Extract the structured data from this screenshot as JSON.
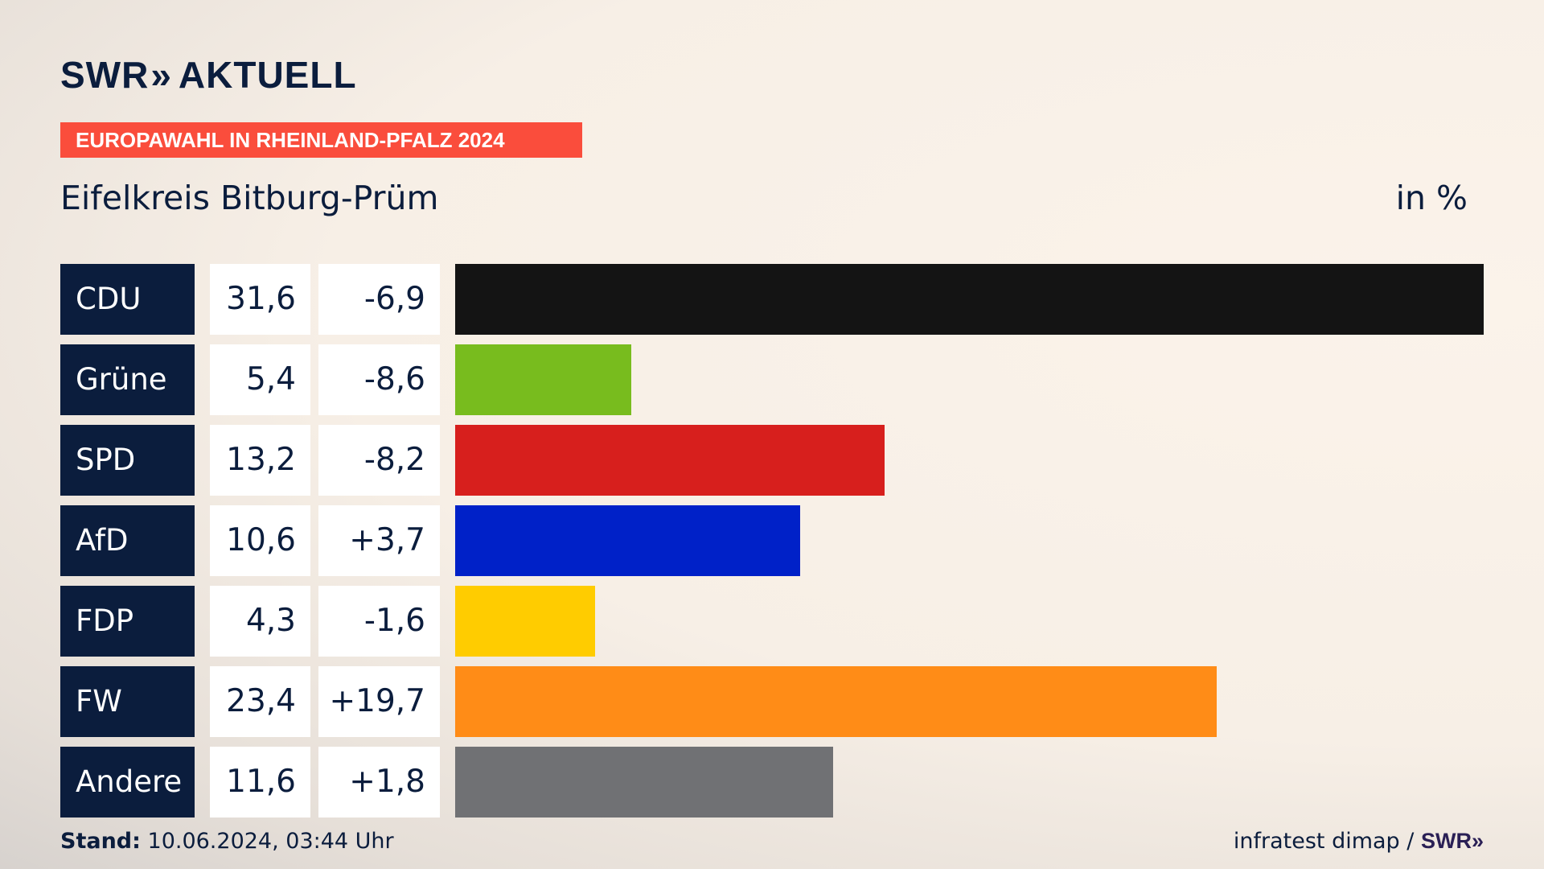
{
  "header": {
    "logo_swr": "SWR",
    "logo_chevrons": "»",
    "logo_aktuell": "AKTUELL",
    "banner": "EUROPAWAHL IN RHEINLAND-PFALZ 2024",
    "region": "Eifelkreis Bitburg-Prüm",
    "unit": "in %"
  },
  "footer": {
    "stand_label": "Stand:",
    "stand_value": "10.06.2024, 03:44 Uhr",
    "source": "infratest dimap /",
    "source_logo": "SWR»"
  },
  "chart_data": {
    "type": "bar",
    "orientation": "horizontal",
    "categories": [
      "CDU",
      "Grüne",
      "SPD",
      "AfD",
      "FDP",
      "FW",
      "Andere"
    ],
    "values": [
      31.6,
      5.4,
      13.2,
      10.6,
      4.3,
      23.4,
      11.6
    ],
    "value_labels": [
      "31,6",
      "5,4",
      "13,2",
      "10,6",
      "4,3",
      "23,4",
      "11,6"
    ],
    "change_labels": [
      "-6,9",
      "-8,6",
      "-8,2",
      "+3,7",
      "-1,6",
      "+19,7",
      "+1,8"
    ],
    "changes": [
      -6.9,
      -8.6,
      -8.2,
      3.7,
      -1.6,
      19.7,
      1.8
    ],
    "colors": [
      "#141414",
      "#78bc1e",
      "#d71f1d",
      "#0021c8",
      "#ffcc00",
      "#ff8c17",
      "#707174"
    ],
    "title": "Eifelkreis Bitburg-Prüm",
    "unit": "in %",
    "xlim": [
      0,
      31.6
    ],
    "grid": false,
    "legend": "none"
  }
}
